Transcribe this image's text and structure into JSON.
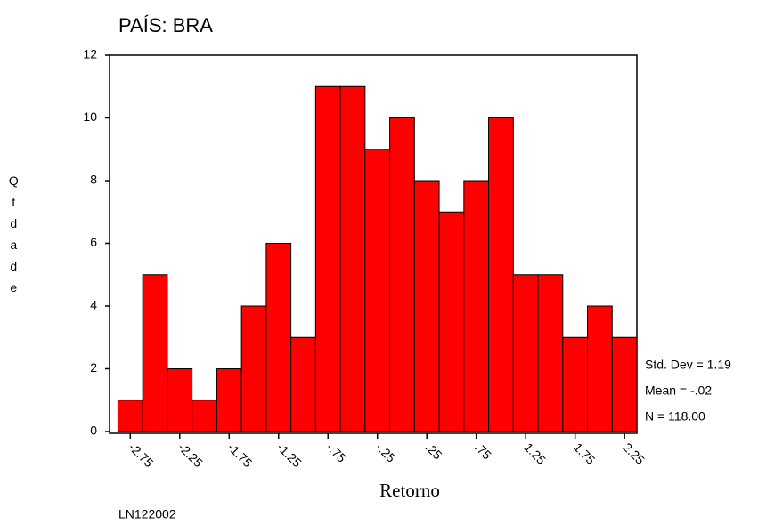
{
  "chart_data": {
    "type": "histogram",
    "title": "PAÍS:  BRA",
    "x_label": "Retorno",
    "y_label": "Qtdade",
    "footer": "LN122002",
    "annotations": [
      "Std. Dev = 1.19",
      "Mean = -.02",
      "N = 118.00"
    ],
    "bins": [
      -2.875,
      -2.625,
      -2.375,
      -2.125,
      -1.875,
      -1.625,
      -1.375,
      -1.125,
      -0.875,
      -0.625,
      -0.375,
      -0.125,
      0.125,
      0.375,
      0.625,
      0.875,
      1.125,
      1.375,
      1.625,
      1.875,
      2.125,
      2.375
    ],
    "counts": [
      1,
      5,
      2,
      1,
      2,
      4,
      6,
      3,
      11,
      11,
      9,
      10,
      8,
      7,
      8,
      10,
      5,
      5,
      3,
      4,
      3
    ],
    "color": "#ff0000",
    "xlim": [
      -2.96,
      2.375
    ],
    "ylim": [
      0,
      12
    ],
    "xticks": [
      -2.75,
      -2.25,
      -1.75,
      -1.25,
      {
        "value": -0.75,
        "label": "-.75"
      },
      {
        "value": -0.25,
        "label": "-.25"
      },
      {
        "value": 0.25,
        "label": ".25"
      },
      {
        "value": 0.75,
        "label": ".75"
      },
      1.25,
      1.75,
      2.25
    ],
    "yticks": [
      0,
      2,
      4,
      6,
      8,
      10,
      12
    ]
  }
}
